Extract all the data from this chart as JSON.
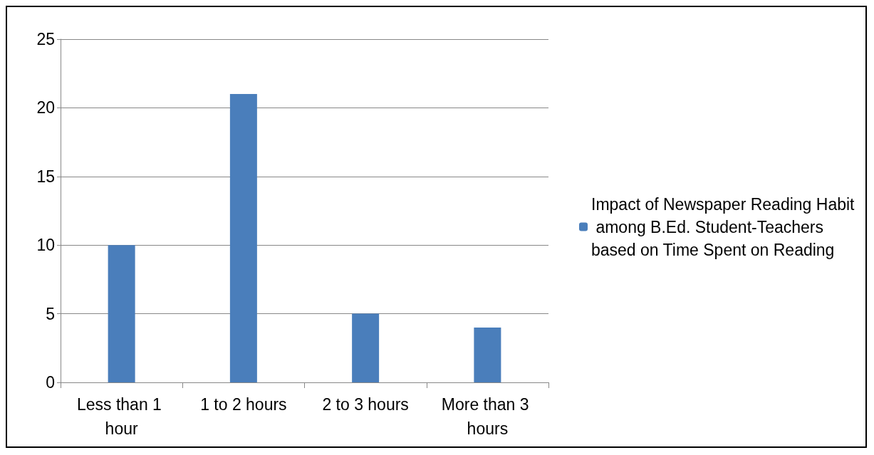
{
  "chart_data": {
    "type": "bar",
    "categories": [
      "Less than 1 hour",
      "1 to 2 hours",
      "2 to 3 hours",
      "More than 3 hours"
    ],
    "series": [
      {
        "name": "Impact of Newspaper Reading Habit among B.Ed. Student-Teachers based on Time Spent on Reading",
        "color": "#4a7ebb",
        "values": [
          10,
          21,
          5,
          4
        ]
      }
    ],
    "ylim": [
      0,
      25
    ],
    "yticks": [
      0,
      5,
      10,
      15,
      20,
      25
    ],
    "grid": "y",
    "legend": "right"
  }
}
